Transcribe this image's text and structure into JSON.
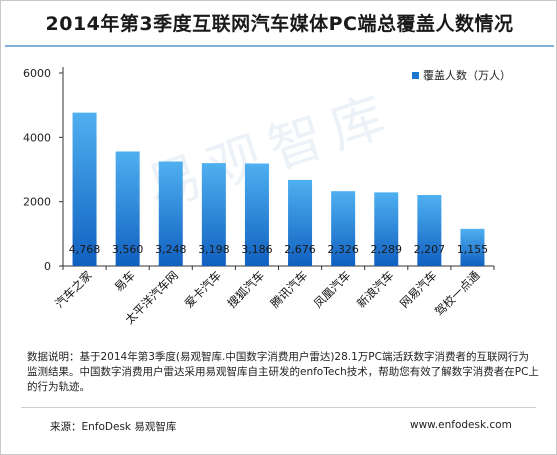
{
  "title": "2014年第3季度互联网汽车媒体PC端总覆盖人数情况",
  "legend_label": "覆盖人数（万人）",
  "watermark": "易观智库",
  "note": "数据说明：基于2014年第3季度(易观智库.中国数字消费用户雷达)28.1万PC端活跃数字消费者的互联网行为监测结果。中国数字消费用户雷达采用易观智库自主研发的enfoTech技术，帮助您有效了解数字消费者在PC上的行为轨迹。",
  "source": "来源：EnfoDesk 易观智库",
  "site": "www.enfodesk.com",
  "colors": {
    "bar_top": "#4fb0f0",
    "bar_bottom": "#1060c0",
    "axis": "#333333"
  },
  "chart_data": {
    "type": "bar",
    "title": "2014年第3季度互联网汽车媒体PC端总覆盖人数情况",
    "categories": [
      "汽车之家",
      "易车",
      "太平洋汽车网",
      "爱卡汽车",
      "搜狐汽车",
      "腾讯汽车",
      "凤凰汽车",
      "新浪汽车",
      "网易汽车",
      "驾校一点通"
    ],
    "series": [
      {
        "name": "覆盖人数（万人）",
        "values": [
          4768,
          3560,
          3248,
          3198,
          3186,
          2676,
          2326,
          2289,
          2207,
          1155
        ]
      }
    ],
    "data_labels": [
      "4,768",
      "3,560",
      "3,248",
      "3,198",
      "3,186",
      "2,676",
      "2,326",
      "2,289",
      "2,207",
      "1,155"
    ],
    "yticks": [
      "0",
      "2000",
      "4000",
      "6000"
    ],
    "ylim": [
      0,
      6000
    ],
    "xlabel": "",
    "ylabel": "",
    "grid": false,
    "legend_position": "top-right"
  }
}
